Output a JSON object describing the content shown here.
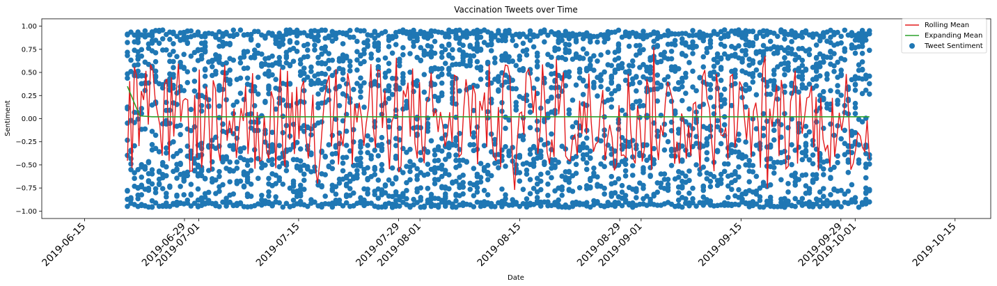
{
  "chart_data": {
    "type": "scatter",
    "title": "Vaccination Tweets over Time",
    "xlabel": "Date",
    "ylabel": "Sentiment",
    "xlim": [
      "2019-06-09",
      "2019-10-20"
    ],
    "ylim": [
      -1.08,
      1.08
    ],
    "data_range": [
      "2019-06-21",
      "2019-10-03"
    ],
    "yticks": [
      1.0,
      0.75,
      0.5,
      0.25,
      0.0,
      -0.25,
      -0.5,
      -0.75,
      -1.0
    ],
    "ytick_labels": [
      "1.00",
      "0.75",
      "0.50",
      "0.25",
      "0.00",
      "−0.25",
      "−0.50",
      "−0.75",
      "−1.00"
    ],
    "xticks": [
      "2019-06-15",
      "2019-06-29",
      "2019-07-01",
      "2019-07-15",
      "2019-07-29",
      "2019-08-01",
      "2019-08-15",
      "2019-08-29",
      "2019-09-01",
      "2019-09-15",
      "2019-09-29",
      "2019-10-01",
      "2019-10-15"
    ],
    "xtick_labels": [
      "2019-06-15",
      "2019-06-29",
      "2019-07-01",
      "2019-07-15",
      "2019-07-29",
      "2019-08-01",
      "2019-08-15",
      "2019-08-29",
      "2019-09-01",
      "2019-09-15",
      "2019-09-29",
      "2019-10-01",
      "2019-10-15"
    ],
    "grid": false,
    "legend_position": "top-right",
    "series": [
      {
        "name": "Rolling Mean",
        "kind": "line",
        "color": "#e41a1c"
      },
      {
        "name": "Expanding Mean",
        "kind": "line",
        "color": "#2ca02c",
        "value": 0.02
      },
      {
        "name": "Tweet Sentiment",
        "kind": "scatter",
        "color": "#1f77b4"
      }
    ]
  }
}
